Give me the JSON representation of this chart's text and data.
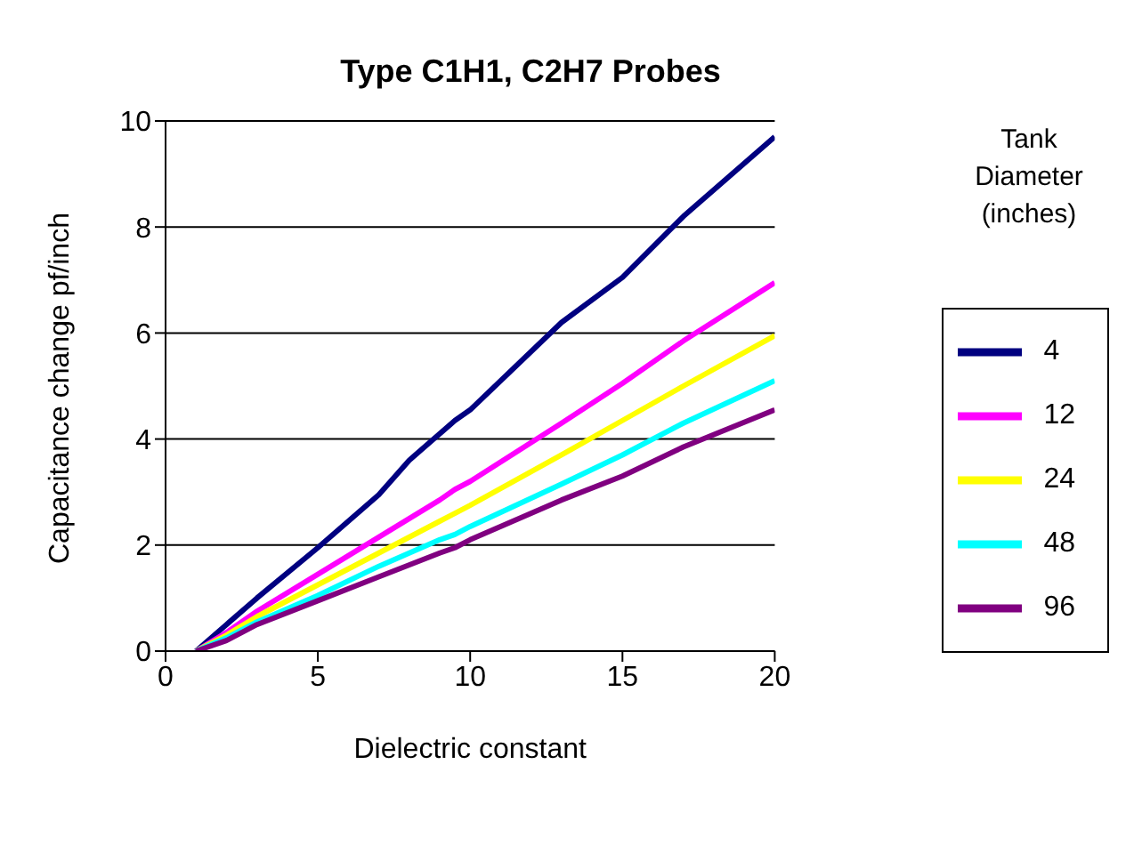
{
  "chart_data": {
    "type": "line",
    "title": "Type C1H1, C2H7 Probes",
    "xlabel": "Dielectric constant",
    "ylabel": "Capacitance change pf/inch",
    "legend_title": "Tank Diameter (inches)",
    "xlim": [
      0,
      20
    ],
    "xticks": [
      0,
      5,
      10,
      15,
      20
    ],
    "ylim": [
      0,
      10
    ],
    "yticks": [
      0,
      2,
      4,
      6,
      8,
      10
    ],
    "grid": "y",
    "legend": "right",
    "marker": "none",
    "line_style": "solid",
    "series": [
      {
        "name": "4",
        "color": "#000080",
        "x": [
          1,
          2,
          3,
          5,
          7,
          8,
          9.5,
          10,
          13,
          15,
          17,
          20
        ],
        "values": [
          0,
          0.5,
          1.0,
          1.95,
          2.95,
          3.6,
          4.35,
          4.55,
          6.2,
          7.05,
          8.2,
          9.7
        ]
      },
      {
        "name": "12",
        "color": "#ff00ff",
        "x": [
          1,
          2,
          3,
          5,
          7,
          9,
          9.5,
          10,
          13,
          15,
          17,
          20
        ],
        "values": [
          0,
          0.35,
          0.75,
          1.45,
          2.15,
          2.85,
          3.05,
          3.2,
          4.3,
          5.05,
          5.85,
          6.95
        ]
      },
      {
        "name": "24",
        "color": "#ffff00",
        "x": [
          1,
          2,
          3,
          5,
          7,
          9,
          9.5,
          10,
          13,
          15,
          17,
          20
        ],
        "values": [
          0,
          0.3,
          0.65,
          1.25,
          1.85,
          2.45,
          2.6,
          2.75,
          3.7,
          4.35,
          5.0,
          5.95
        ]
      },
      {
        "name": "48",
        "color": "#00ffff",
        "x": [
          1,
          2,
          3,
          5,
          7,
          9,
          9.5,
          10,
          13,
          15,
          17,
          20
        ],
        "values": [
          0,
          0.25,
          0.55,
          1.05,
          1.6,
          2.1,
          2.2,
          2.35,
          3.15,
          3.7,
          4.3,
          5.1
        ]
      },
      {
        "name": "96",
        "color": "#800080",
        "x": [
          1,
          2,
          3,
          5,
          7,
          9,
          9.5,
          10,
          13,
          15,
          17,
          20
        ],
        "values": [
          0,
          0.2,
          0.5,
          0.95,
          1.4,
          1.85,
          1.95,
          2.1,
          2.85,
          3.3,
          3.85,
          4.55
        ]
      }
    ]
  }
}
